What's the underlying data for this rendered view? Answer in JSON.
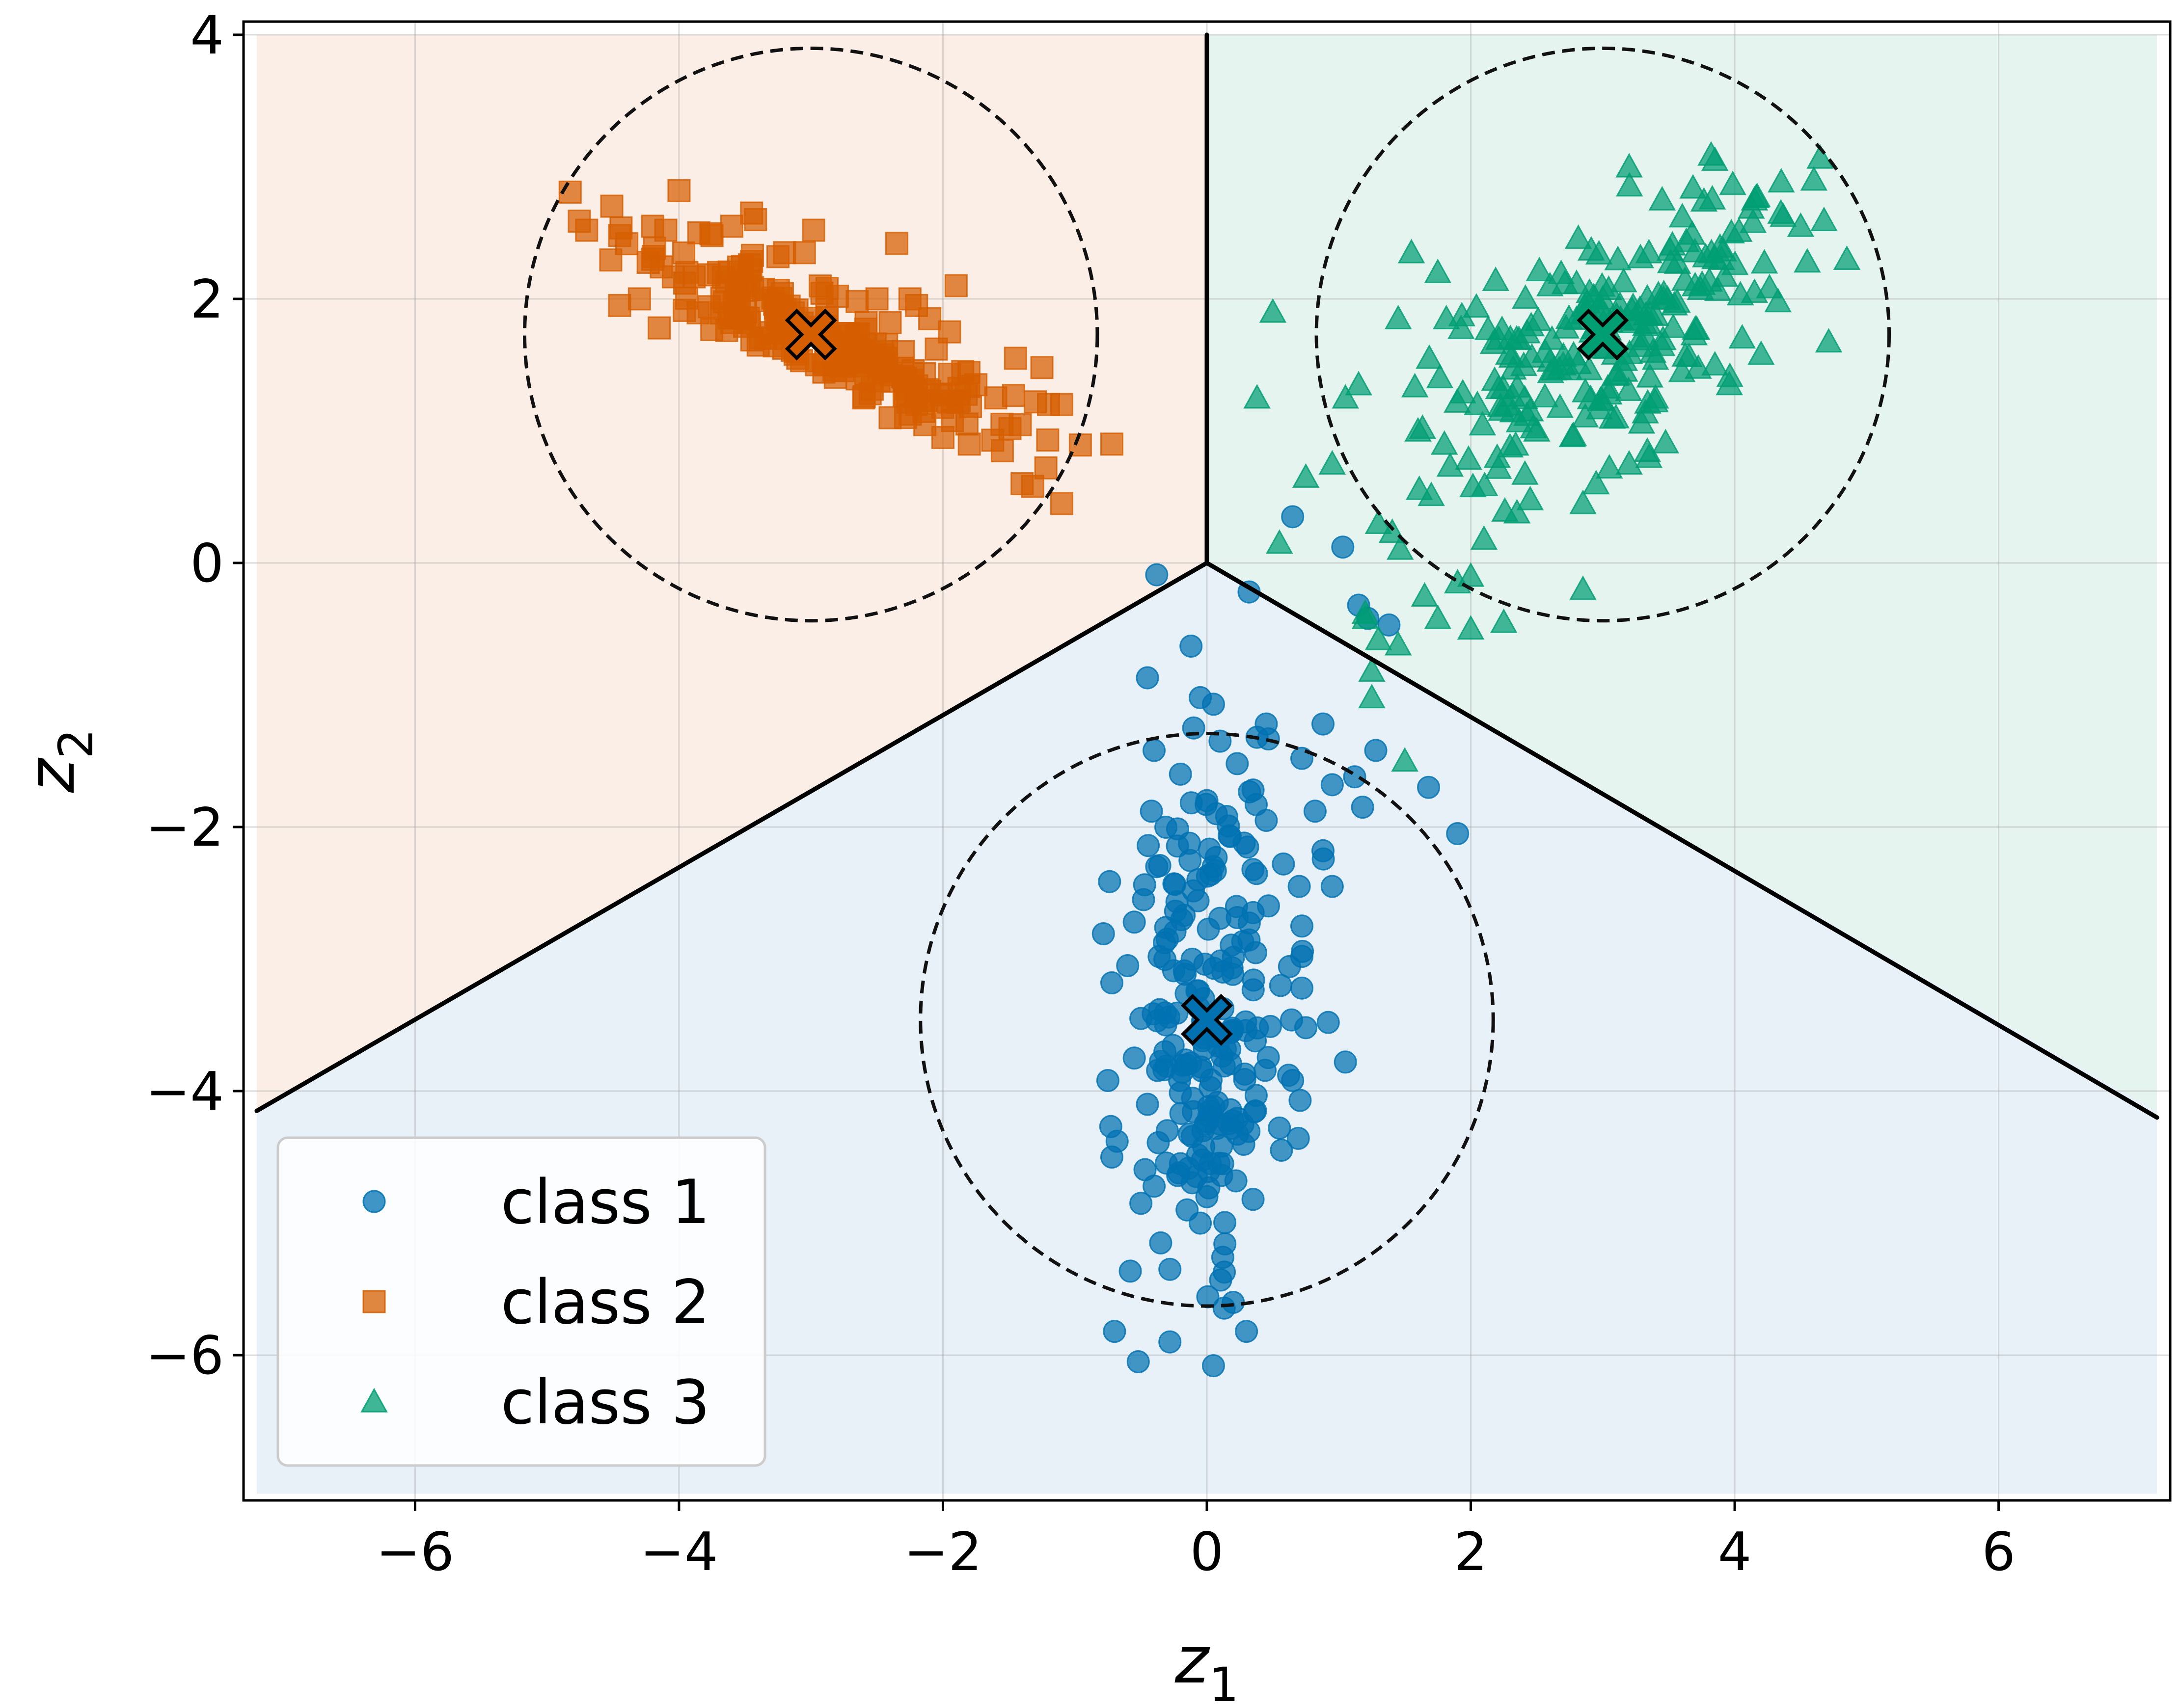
{
  "chart_data": {
    "type": "scatter",
    "title": "",
    "xlabel": "z",
    "xlabel_sub": "1",
    "ylabel": "z",
    "ylabel_sub": "2",
    "xlim": [
      -7.3,
      7.3
    ],
    "ylim": [
      -7.1,
      4.1
    ],
    "x_ticks": [
      -6,
      -4,
      -2,
      0,
      2,
      4,
      6
    ],
    "y_ticks": [
      -6,
      -4,
      -2,
      0,
      2,
      4
    ],
    "x_tick_labels": [
      "−6",
      "−4",
      "−2",
      "0",
      "2",
      "4",
      "6"
    ],
    "y_tick_labels": [
      "−6",
      "−4",
      "−2",
      "0",
      "2",
      "4"
    ],
    "grid": true,
    "legend_position": "lower-left",
    "regions": [
      {
        "class": "class 2",
        "color": "#fbeee6"
      },
      {
        "class": "class 3",
        "color": "#e5f4ef"
      },
      {
        "class": "class 1",
        "color": "#e8f0f8"
      }
    ],
    "decision_boundary": [
      {
        "from": [
          0,
          0
        ],
        "to": [
          0,
          4.0
        ]
      },
      {
        "from": [
          0,
          0
        ],
        "to": [
          -7.2,
          -4.15
        ]
      },
      {
        "from": [
          0,
          0
        ],
        "to": [
          7.2,
          -4.2
        ]
      }
    ],
    "circles": [
      {
        "cx": -3.0,
        "cy": 1.73,
        "r": 2.17
      },
      {
        "cx": 3.0,
        "cy": 1.73,
        "r": 2.17
      },
      {
        "cx": 0.0,
        "cy": -3.46,
        "r": 2.17
      }
    ],
    "series": [
      {
        "name": "class 1",
        "color": "#0072b2",
        "marker": "circle",
        "center": [
          0.0,
          -3.46
        ],
        "spread": [
          0.3,
          0.85
        ],
        "correlation": 0.05,
        "count": 260,
        "points": [
          [
            -0.38,
            -0.09
          ],
          [
            0.32,
            -0.22
          ],
          [
            -0.12,
            -0.63
          ],
          [
            -0.45,
            -0.87
          ],
          [
            -0.05,
            -1.02
          ],
          [
            0.05,
            -1.07
          ],
          [
            0.45,
            -1.22
          ],
          [
            0.88,
            -1.22
          ],
          [
            1.15,
            -0.32
          ],
          [
            1.22,
            -0.42
          ],
          [
            1.38,
            -0.47
          ],
          [
            1.03,
            0.12
          ],
          [
            0.65,
            0.35
          ],
          [
            -0.4,
            -1.42
          ],
          [
            0.0,
            -1.8
          ],
          [
            0.23,
            -1.52
          ],
          [
            0.38,
            -1.32
          ],
          [
            0.72,
            -1.48
          ],
          [
            0.95,
            -1.68
          ],
          [
            1.12,
            -1.62
          ],
          [
            1.28,
            -1.42
          ],
          [
            1.18,
            -1.85
          ],
          [
            1.68,
            -1.7
          ],
          [
            1.9,
            -2.05
          ],
          [
            0.95,
            -2.45
          ],
          [
            0.82,
            -1.88
          ],
          [
            0.88,
            -2.18
          ],
          [
            -0.55,
            -2.72
          ],
          [
            -0.72,
            -3.18
          ],
          [
            -0.75,
            -3.92
          ],
          [
            -0.72,
            -4.5
          ],
          [
            -0.68,
            -4.38
          ],
          [
            -0.5,
            -4.85
          ],
          [
            -0.35,
            -5.15
          ],
          [
            -0.28,
            -5.35
          ],
          [
            -0.7,
            -5.82
          ],
          [
            -0.52,
            -6.05
          ],
          [
            -0.28,
            -5.9
          ],
          [
            0.05,
            -6.08
          ],
          [
            0.3,
            -5.82
          ],
          [
            0.2,
            -5.6
          ],
          [
            0.35,
            -4.82
          ],
          [
            0.22,
            -4.68
          ],
          [
            0.55,
            -4.28
          ],
          [
            0.62,
            -3.88
          ],
          [
            0.65,
            -3.92
          ],
          [
            0.92,
            -3.48
          ],
          [
            1.05,
            -3.78
          ],
          [
            0.75,
            -3.52
          ],
          [
            0.72,
            -3.22
          ],
          [
            0.72,
            -2.98
          ],
          [
            0.72,
            -2.75
          ],
          [
            0.7,
            -2.45
          ],
          [
            0.58,
            -2.28
          ],
          [
            0.45,
            -1.95
          ],
          [
            0.35,
            -1.72
          ],
          [
            0.15,
            -1.92
          ],
          [
            -0.1,
            -1.25
          ],
          [
            0.1,
            -1.35
          ],
          [
            -0.2,
            -1.6
          ],
          [
            -0.42,
            -1.88
          ],
          [
            -0.38,
            -2.3
          ],
          [
            -0.48,
            -2.55
          ],
          [
            -0.3,
            -2.85
          ],
          [
            -0.6,
            -3.05
          ],
          [
            -0.5,
            -3.45
          ],
          [
            -0.55,
            -3.75
          ],
          [
            -0.45,
            -4.1
          ],
          [
            -0.3,
            -4.3
          ],
          [
            -0.2,
            -4.55
          ],
          [
            -0.15,
            -4.9
          ],
          [
            0.1,
            -4.25
          ],
          [
            0.0,
            -4.8
          ],
          [
            -0.05,
            -5.0
          ],
          [
            0.12,
            -4.55
          ]
        ]
      },
      {
        "name": "class 2",
        "color": "#d55e00",
        "marker": "square",
        "center": [
          -3.0,
          1.73
        ],
        "spread": [
          0.7,
          0.35
        ],
        "correlation": -0.9,
        "count": 260,
        "points": [
          [
            -4.7,
            2.52
          ],
          [
            -4.45,
            2.48
          ],
          [
            -4.2,
            2.55
          ],
          [
            -4.0,
            2.82
          ],
          [
            -3.75,
            2.48
          ],
          [
            -3.6,
            2.55
          ],
          [
            -3.45,
            2.65
          ],
          [
            -3.42,
            2.6
          ],
          [
            -3.25,
            2.32
          ],
          [
            -3.2,
            2.35
          ],
          [
            -2.98,
            2.52
          ],
          [
            -2.8,
            2.02
          ],
          [
            -2.88,
            1.92
          ],
          [
            -2.65,
            1.98
          ],
          [
            -2.5,
            2.0
          ],
          [
            -2.4,
            1.82
          ],
          [
            -2.2,
            1.95
          ],
          [
            -2.1,
            1.85
          ],
          [
            -1.9,
            2.1
          ],
          [
            -1.85,
            1.45
          ],
          [
            -2.05,
            1.62
          ],
          [
            -1.95,
            1.75
          ],
          [
            -1.75,
            1.35
          ],
          [
            -1.6,
            1.25
          ],
          [
            -1.45,
            1.55
          ],
          [
            -1.3,
            1.22
          ],
          [
            -1.25,
            1.48
          ],
          [
            -1.2,
            1.2
          ],
          [
            -1.1,
            1.2
          ],
          [
            -0.72,
            0.9
          ],
          [
            -1.32,
            0.58
          ],
          [
            -1.22,
            0.72
          ],
          [
            -1.4,
            0.6
          ],
          [
            -1.1,
            0.45
          ],
          [
            -1.55,
            0.85
          ],
          [
            -1.8,
            0.9
          ],
          [
            -2.0,
            0.95
          ],
          [
            -2.35,
            2.42
          ],
          [
            -2.25,
            2.0
          ],
          [
            -3.05,
            2.35
          ],
          [
            -4.3,
            2.0
          ],
          [
            -4.2,
            2.3
          ],
          [
            -4.15,
            1.78
          ],
          [
            -4.45,
            1.95
          ],
          [
            -4.1,
            2.52
          ],
          [
            -3.85,
            2.5
          ],
          [
            -3.6,
            1.82
          ],
          [
            -3.4,
            1.65
          ],
          [
            -3.2,
            1.7
          ],
          [
            -2.7,
            1.65
          ],
          [
            -2.45,
            1.45
          ],
          [
            -2.2,
            1.2
          ],
          [
            -2.1,
            1.3
          ],
          [
            -2.4,
            1.1
          ],
          [
            -2.6,
            1.25
          ],
          [
            -2.9,
            1.5
          ],
          [
            -3.1,
            1.55
          ],
          [
            -3.5,
            2.1
          ],
          [
            -3.7,
            2.2
          ],
          [
            -2.3,
            1.6
          ]
        ]
      },
      {
        "name": "class 3",
        "color": "#009e73",
        "marker": "triangle",
        "center": [
          3.0,
          1.73
        ],
        "spread": [
          0.72,
          0.55
        ],
        "correlation": 0.62,
        "count": 260,
        "points": [
          [
            0.5,
            1.9
          ],
          [
            0.38,
            1.25
          ],
          [
            0.55,
            0.15
          ],
          [
            0.75,
            0.65
          ],
          [
            0.95,
            0.75
          ],
          [
            1.05,
            1.25
          ],
          [
            1.15,
            1.35
          ],
          [
            1.45,
            1.85
          ],
          [
            1.55,
            2.35
          ],
          [
            1.75,
            2.2
          ],
          [
            3.2,
            3.0
          ],
          [
            3.45,
            2.75
          ],
          [
            3.85,
            3.05
          ],
          [
            4.15,
            2.75
          ],
          [
            4.35,
            2.65
          ],
          [
            4.5,
            2.55
          ],
          [
            4.6,
            2.9
          ],
          [
            4.85,
            2.3
          ],
          [
            4.55,
            2.28
          ],
          [
            4.15,
            2.05
          ],
          [
            4.2,
            1.58
          ],
          [
            3.85,
            1.5
          ],
          [
            3.6,
            1.45
          ],
          [
            3.4,
            1.25
          ],
          [
            3.35,
            0.8
          ],
          [
            3.2,
            0.75
          ],
          [
            3.05,
            0.72
          ],
          [
            2.95,
            0.6
          ],
          [
            2.85,
            0.45
          ],
          [
            2.45,
            0.48
          ],
          [
            2.35,
            0.38
          ],
          [
            2.1,
            0.18
          ],
          [
            2.0,
            -0.1
          ],
          [
            1.9,
            -0.15
          ],
          [
            1.65,
            -0.25
          ],
          [
            1.2,
            -0.38
          ],
          [
            1.3,
            -0.58
          ],
          [
            1.45,
            -0.62
          ],
          [
            1.25,
            -0.82
          ],
          [
            1.25,
            -1.02
          ],
          [
            1.5,
            -1.5
          ],
          [
            1.2,
            -0.42
          ],
          [
            1.75,
            -0.42
          ],
          [
            2.0,
            -0.5
          ],
          [
            2.25,
            -0.45
          ],
          [
            2.85,
            -0.2
          ],
          [
            3.35,
            2.35
          ],
          [
            2.6,
            2.1
          ],
          [
            2.3,
            1.7
          ],
          [
            2.05,
            1.2
          ],
          [
            1.8,
            0.9
          ],
          [
            1.6,
            1.0
          ],
          [
            2.7,
            1.5
          ],
          [
            3.0,
            2.0
          ],
          [
            3.7,
            2.1
          ],
          [
            3.9,
            2.3
          ],
          [
            2.5,
            1.0
          ],
          [
            2.2,
            0.8
          ],
          [
            1.3,
            0.3
          ],
          [
            3.1,
            1.1
          ]
        ]
      }
    ],
    "centroids": [
      {
        "class": "class 2",
        "x": -3.0,
        "y": 1.73,
        "color": "#d55e00"
      },
      {
        "class": "class 3",
        "x": 3.0,
        "y": 1.73,
        "color": "#009e73"
      },
      {
        "class": "class 1",
        "x": 0.0,
        "y": -3.46,
        "color": "#0072b2"
      }
    ]
  }
}
